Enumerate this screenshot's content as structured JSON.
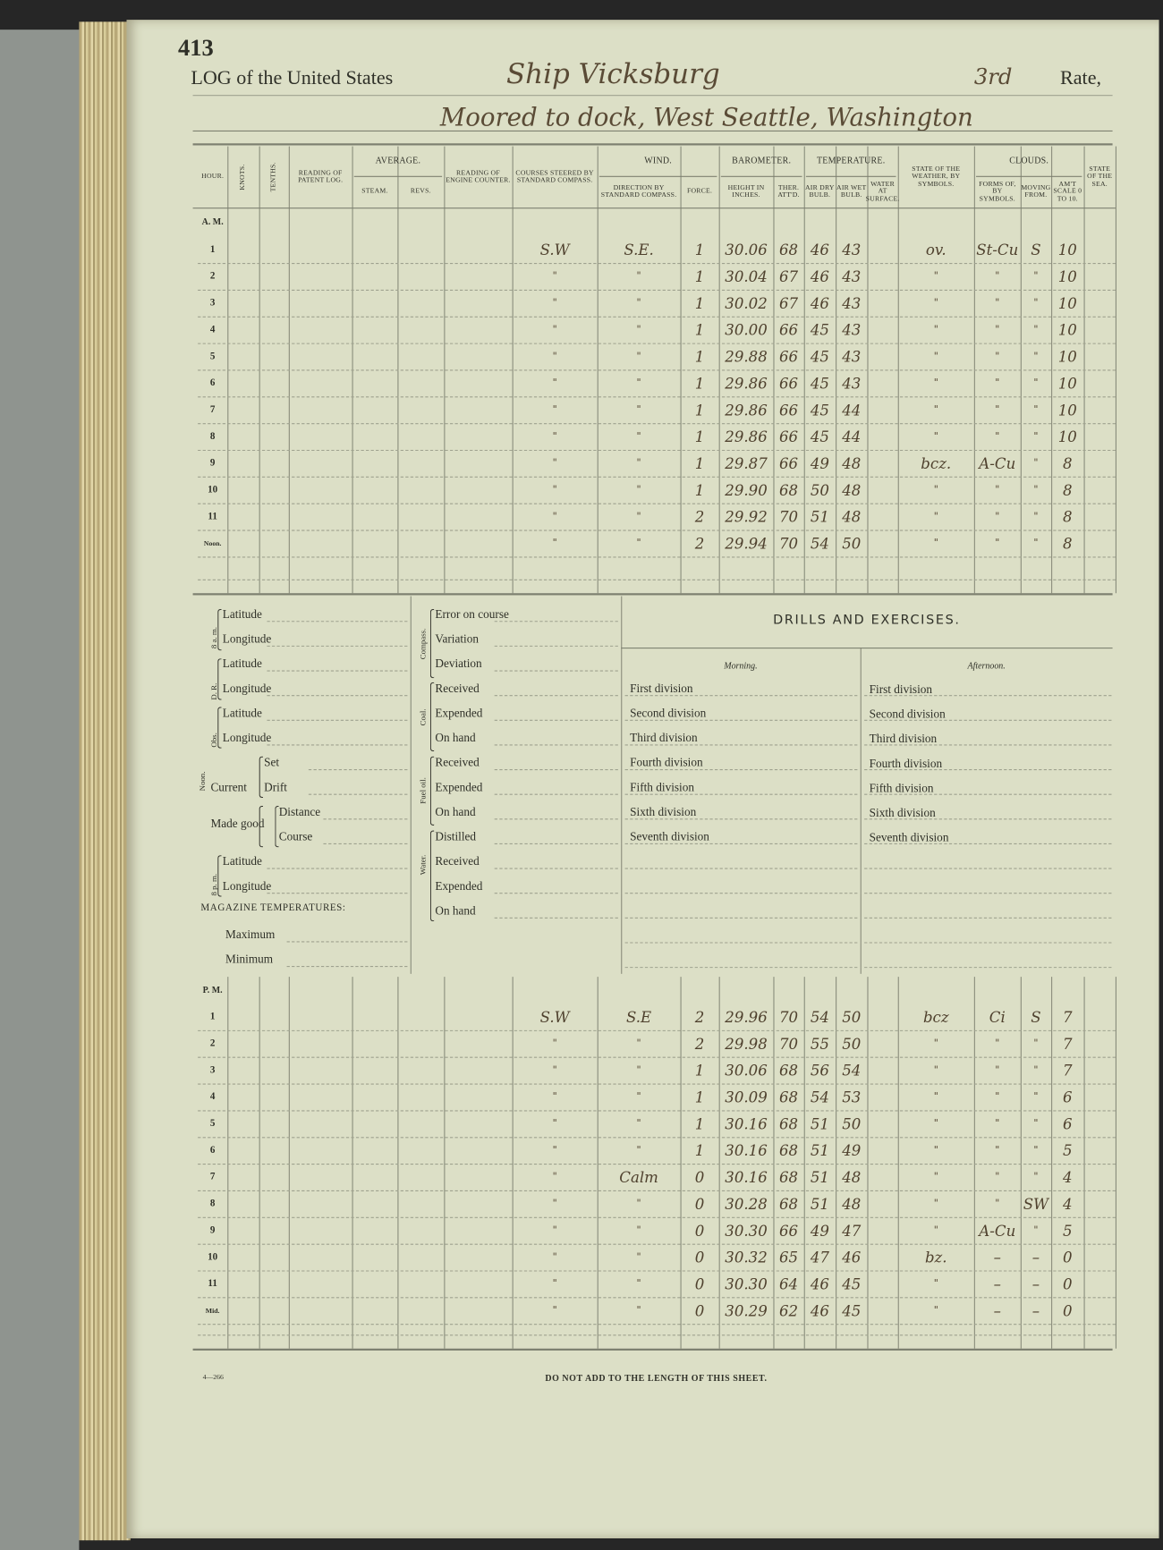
{
  "page_number": "413",
  "title": {
    "prefix": "LOG of the United States",
    "ship": "Ship Vicksburg",
    "rate": "3rd",
    "rate_label": "Rate,",
    "location": "Moored to dock, West Seattle, Washington"
  },
  "log_table": {
    "headers": {
      "hour": "Hour.",
      "knots": "Knots.",
      "tenths": "Tenths.",
      "patent_log": "Reading of Patent Log.",
      "average": "Average.",
      "steam": "Steam.",
      "revs": "Revs.",
      "engine_counter": "Reading of Engine Counter.",
      "courses": "Courses steered by standard compass.",
      "wind": "Wind.",
      "wind_direction": "Direction by standard compass.",
      "force": "Force.",
      "barometer": "Barometer.",
      "height": "Height in inches.",
      "ther": "Ther. Att'd.",
      "temperature": "Temperature.",
      "air_dry": "Air dry bulb.",
      "air_wet": "Air wet bulb.",
      "water": "Water at surface.",
      "weather": "State of the weather, by symbols.",
      "clouds": "Clouds.",
      "cloud_forms": "Forms of, by symbols.",
      "cloud_moving": "Moving from.",
      "cloud_amount": "Am't scale 0 to 10.",
      "sea": "State of the sea."
    },
    "am_label": "A. M.",
    "am_rows": [
      {
        "hour": "1",
        "course": "S.W",
        "direction": "S.E.",
        "force": "1",
        "height": "30.06",
        "ther": "68",
        "dry": "46",
        "wet": "43",
        "weather": "ov.",
        "forms": "St-Cu",
        "moving": "S",
        "amount": "10"
      },
      {
        "hour": "2",
        "course": "\"",
        "direction": "\"",
        "force": "1",
        "height": "30.04",
        "ther": "67",
        "dry": "46",
        "wet": "43",
        "weather": "\"",
        "forms": "\"",
        "moving": "\"",
        "amount": "10"
      },
      {
        "hour": "3",
        "course": "\"",
        "direction": "\"",
        "force": "1",
        "height": "30.02",
        "ther": "67",
        "dry": "46",
        "wet": "43",
        "weather": "\"",
        "forms": "\"",
        "moving": "\"",
        "amount": "10"
      },
      {
        "hour": "4",
        "course": "\"",
        "direction": "\"",
        "force": "1",
        "height": "30.00",
        "ther": "66",
        "dry": "45",
        "wet": "43",
        "weather": "\"",
        "forms": "\"",
        "moving": "\"",
        "amount": "10"
      },
      {
        "hour": "5",
        "course": "\"",
        "direction": "\"",
        "force": "1",
        "height": "29.88",
        "ther": "66",
        "dry": "45",
        "wet": "43",
        "weather": "\"",
        "forms": "\"",
        "moving": "\"",
        "amount": "10"
      },
      {
        "hour": "6",
        "course": "\"",
        "direction": "\"",
        "force": "1",
        "height": "29.86",
        "ther": "66",
        "dry": "45",
        "wet": "43",
        "weather": "\"",
        "forms": "\"",
        "moving": "\"",
        "amount": "10"
      },
      {
        "hour": "7",
        "course": "\"",
        "direction": "\"",
        "force": "1",
        "height": "29.86",
        "ther": "66",
        "dry": "45",
        "wet": "44",
        "weather": "\"",
        "forms": "\"",
        "moving": "\"",
        "amount": "10"
      },
      {
        "hour": "8",
        "course": "\"",
        "direction": "\"",
        "force": "1",
        "height": "29.86",
        "ther": "66",
        "dry": "45",
        "wet": "44",
        "weather": "\"",
        "forms": "\"",
        "moving": "\"",
        "amount": "10"
      },
      {
        "hour": "9",
        "course": "\"",
        "direction": "\"",
        "force": "1",
        "height": "29.87",
        "ther": "66",
        "dry": "49",
        "wet": "48",
        "weather": "bcz.",
        "forms": "A-Cu",
        "moving": "\"",
        "amount": "8"
      },
      {
        "hour": "10",
        "course": "\"",
        "direction": "\"",
        "force": "1",
        "height": "29.90",
        "ther": "68",
        "dry": "50",
        "wet": "48",
        "weather": "\"",
        "forms": "\"",
        "moving": "\"",
        "amount": "8"
      },
      {
        "hour": "11",
        "course": "\"",
        "direction": "\"",
        "force": "2",
        "height": "29.92",
        "ther": "70",
        "dry": "51",
        "wet": "48",
        "weather": "\"",
        "forms": "\"",
        "moving": "\"",
        "amount": "8"
      },
      {
        "hour": "Noon.",
        "course": "\"",
        "direction": "\"",
        "force": "2",
        "height": "29.94",
        "ther": "70",
        "dry": "54",
        "wet": "50",
        "weather": "\"",
        "forms": "\"",
        "moving": "\"",
        "amount": "8"
      }
    ],
    "pm_label": "P. M.",
    "pm_rows": [
      {
        "hour": "1",
        "course": "S.W",
        "direction": "S.E",
        "force": "2",
        "height": "29.96",
        "ther": "70",
        "dry": "54",
        "wet": "50",
        "weather": "bcz",
        "forms": "Ci",
        "moving": "S",
        "amount": "7"
      },
      {
        "hour": "2",
        "course": "\"",
        "direction": "\"",
        "force": "2",
        "height": "29.98",
        "ther": "70",
        "dry": "55",
        "wet": "50",
        "weather": "\"",
        "forms": "\"",
        "moving": "\"",
        "amount": "7"
      },
      {
        "hour": "3",
        "course": "\"",
        "direction": "\"",
        "force": "1",
        "height": "30.06",
        "ther": "68",
        "dry": "56",
        "wet": "54",
        "weather": "\"",
        "forms": "\"",
        "moving": "\"",
        "amount": "7"
      },
      {
        "hour": "4",
        "course": "\"",
        "direction": "\"",
        "force": "1",
        "height": "30.09",
        "ther": "68",
        "dry": "54",
        "wet": "53",
        "weather": "\"",
        "forms": "\"",
        "moving": "\"",
        "amount": "6"
      },
      {
        "hour": "5",
        "course": "\"",
        "direction": "\"",
        "force": "1",
        "height": "30.16",
        "ther": "68",
        "dry": "51",
        "wet": "50",
        "weather": "\"",
        "forms": "\"",
        "moving": "\"",
        "amount": "6"
      },
      {
        "hour": "6",
        "course": "\"",
        "direction": "\"",
        "force": "1",
        "height": "30.16",
        "ther": "68",
        "dry": "51",
        "wet": "49",
        "weather": "\"",
        "forms": "\"",
        "moving": "\"",
        "amount": "5"
      },
      {
        "hour": "7",
        "course": "\"",
        "direction": "Calm",
        "force": "0",
        "height": "30.16",
        "ther": "68",
        "dry": "51",
        "wet": "48",
        "weather": "\"",
        "forms": "\"",
        "moving": "\"",
        "amount": "4"
      },
      {
        "hour": "8",
        "course": "\"",
        "direction": "\"",
        "force": "0",
        "height": "30.28",
        "ther": "68",
        "dry": "51",
        "wet": "48",
        "weather": "\"",
        "forms": "\"",
        "moving": "SW",
        "amount": "4"
      },
      {
        "hour": "9",
        "course": "\"",
        "direction": "\"",
        "force": "0",
        "height": "30.30",
        "ther": "66",
        "dry": "49",
        "wet": "47",
        "weather": "\"",
        "forms": "A-Cu",
        "moving": "\"",
        "amount": "5"
      },
      {
        "hour": "10",
        "course": "\"",
        "direction": "\"",
        "force": "0",
        "height": "30.32",
        "ther": "65",
        "dry": "47",
        "wet": "46",
        "weather": "bz.",
        "forms": "–",
        "moving": "–",
        "amount": "0"
      },
      {
        "hour": "11",
        "course": "\"",
        "direction": "\"",
        "force": "0",
        "height": "30.30",
        "ther": "64",
        "dry": "46",
        "wet": "45",
        "weather": "\"",
        "forms": "–",
        "moving": "–",
        "amount": "0"
      },
      {
        "hour": "Mid.",
        "course": "\"",
        "direction": "\"",
        "force": "0",
        "height": "30.29",
        "ther": "62",
        "dry": "46",
        "wet": "45",
        "weather": "\"",
        "forms": "–",
        "moving": "–",
        "amount": "0"
      }
    ]
  },
  "noon_section": {
    "side_noon": "Noon.",
    "side_8am": "8 a. m.",
    "side_dr": "D. R.",
    "side_obs": "Obs.",
    "side_8pm": "8 p. m.",
    "latitude": "Latitude",
    "longitude": "Longitude",
    "current": "Current",
    "set": "Set",
    "drift": "Drift",
    "made_good": "Made good",
    "distance": "Distance",
    "course": "Course",
    "magazine": "Magazine temperatures:",
    "maximum": "Maximum",
    "minimum": "Minimum"
  },
  "supplies_section": {
    "compass": "Compass.",
    "coal": "Coal.",
    "fuel_oil": "Fuel oil.",
    "water": "Water.",
    "error_on_course": "Error on course",
    "variation": "Variation",
    "deviation": "Deviation",
    "received": "Received",
    "expended": "Expended",
    "on_hand": "On hand",
    "distilled": "Distilled"
  },
  "drills": {
    "title": "DRILLS AND EXERCISES.",
    "morning": "Morning.",
    "afternoon": "Afternoon.",
    "divisions": [
      "First division",
      "Second division",
      "Third division",
      "Fourth division",
      "Fifth division",
      "Sixth division",
      "Seventh division"
    ]
  },
  "footer": {
    "form_number": "4—266",
    "notice": "DO NOT ADD TO THE LENGTH OF THIS SHEET."
  },
  "colors": {
    "paper": "#dcdfc6",
    "ink": "#5a4b36",
    "print": "#2f3028"
  }
}
